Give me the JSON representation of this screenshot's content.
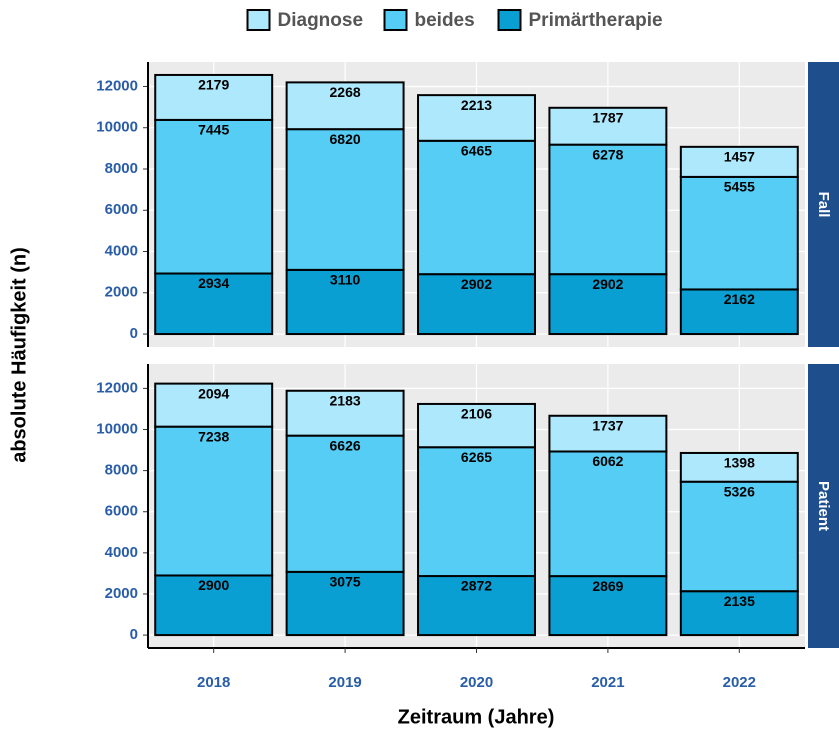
{
  "chart_data": {
    "type": "bar",
    "stacked": true,
    "xlabel": "Zeitraum (Jahre)",
    "ylabel": "absolute Häufigkeit (n)",
    "legend": "top",
    "grid": true,
    "categories": [
      "2018",
      "2019",
      "2020",
      "2021",
      "2022"
    ],
    "facets": [
      "Fall",
      "Patient"
    ],
    "series": [
      {
        "name": "Diagnose",
        "color": "#aee8fc",
        "values": [
          [
            2179,
            2268,
            2213,
            1787,
            1457
          ],
          [
            2094,
            2183,
            2106,
            1737,
            1398
          ]
        ]
      },
      {
        "name": "beides",
        "color": "#55cdf5",
        "values": [
          [
            7445,
            6820,
            6465,
            6278,
            5455
          ],
          [
            7238,
            6626,
            6265,
            6062,
            5326
          ]
        ]
      },
      {
        "name": "Primärtherapie",
        "color": "#0a9fd3",
        "values": [
          [
            2934,
            3110,
            2902,
            2902,
            2162
          ],
          [
            2900,
            3075,
            2872,
            2869,
            2135
          ]
        ]
      }
    ],
    "ylim": [
      -628,
      13186
    ],
    "yticks": [
      0,
      2000,
      4000,
      6000,
      8000,
      10000,
      12000
    ]
  }
}
